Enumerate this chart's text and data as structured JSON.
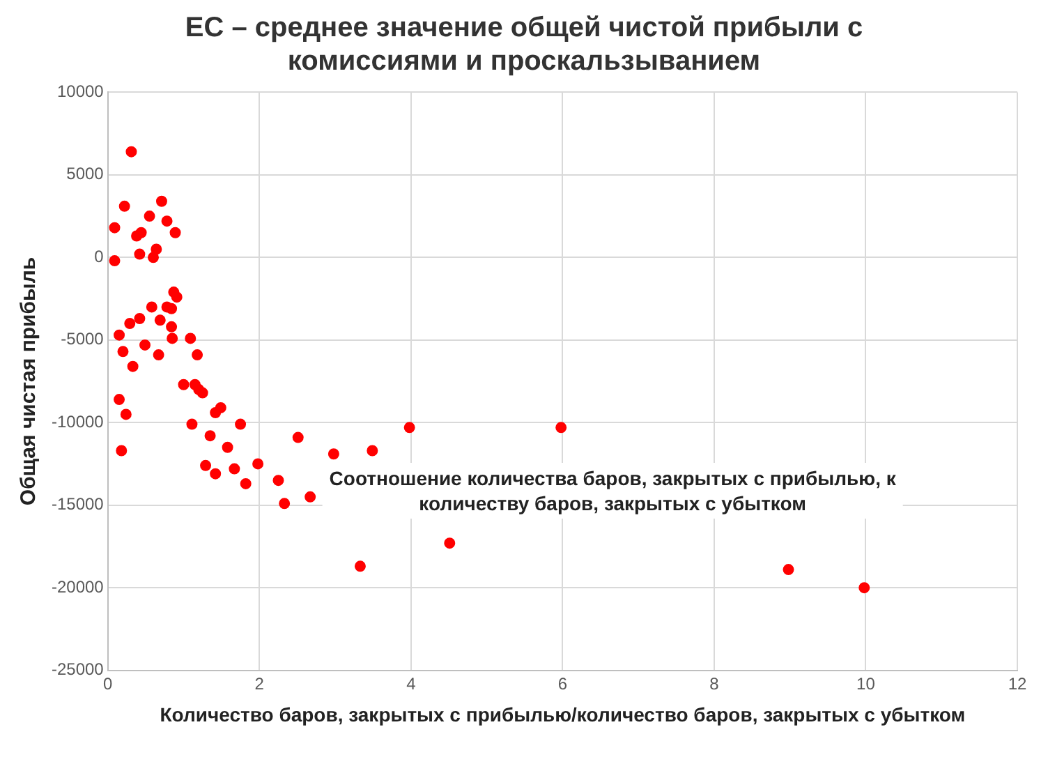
{
  "chart_data": {
    "type": "scatter",
    "title": "EC – среднее значение общей чистой прибыли с комиссиями и проскальзыванием",
    "xlabel": "Количество баров, закрытых с прибылью/количество баров, закрытых с убытком",
    "ylabel": "Общая чистая прибыль",
    "annotations": [
      "Соотношение количества баров, закрытых с прибылью, к количеству баров, закрытых с убытком"
    ],
    "series": [
      {
        "color": "#ff0000",
        "x": [
          0.09,
          0.09,
          0.31,
          0.22,
          0.71,
          0.55,
          0.44,
          0.38,
          0.78,
          0.89,
          0.42,
          0.64,
          0.6,
          0.87,
          0.91,
          0.58,
          0.78,
          0.84,
          0.42,
          0.29,
          0.69,
          0.84,
          0.15,
          0.85,
          1.09,
          0.2,
          0.49,
          0.67,
          1.18,
          0.33,
          1.0,
          1.15,
          1.2,
          1.25,
          0.15,
          0.24,
          1.42,
          1.49,
          1.11,
          1.75,
          1.35,
          2.51,
          0.18,
          1.58,
          2.98,
          3.49,
          3.98,
          5.98,
          1.29,
          1.42,
          1.67,
          1.98,
          1.82,
          2.25,
          2.67,
          2.33,
          3.33,
          4.51,
          8.98,
          9.98
        ],
        "values": [
          1800,
          -200,
          6400,
          3100,
          3400,
          2500,
          1500,
          1300,
          2200,
          1500,
          200,
          500,
          0,
          -2100,
          -2400,
          -3000,
          -3000,
          -3100,
          -3700,
          -4000,
          -3800,
          -4200,
          -4700,
          -4900,
          -4900,
          -5700,
          -5300,
          -5900,
          -5900,
          -6600,
          -7700,
          -7700,
          -8000,
          -8200,
          -8600,
          -9500,
          -9400,
          -9100,
          -10100,
          -10100,
          -10800,
          -10900,
          -11700,
          -11500,
          -11900,
          -11700,
          -10300,
          -10300,
          -12600,
          -13100,
          -12800,
          -12500,
          -13700,
          -13500,
          -14500,
          -14900,
          -18700,
          -17300,
          -18900,
          -20000
        ]
      }
    ],
    "xlim": [
      0,
      12
    ],
    "xticks": [
      0,
      2,
      4,
      6,
      8,
      10,
      12
    ],
    "ylim": [
      -25000,
      10000
    ],
    "yticks": [
      -25000,
      -20000,
      -15000,
      -10000,
      -5000,
      0,
      5000,
      10000
    ],
    "grid": true,
    "legend": false,
    "marker": "circle"
  }
}
